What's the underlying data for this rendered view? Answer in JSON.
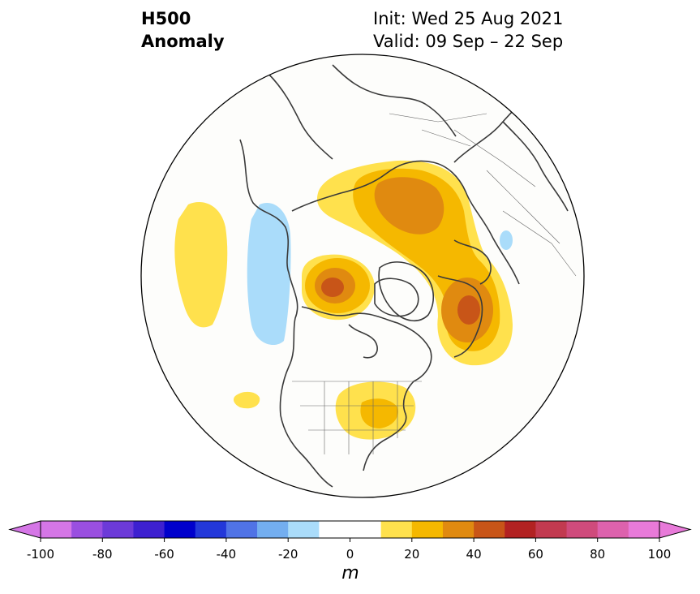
{
  "title": {
    "left_line1": "H500",
    "left_line2": "Anomaly",
    "init": "Init: Wed 25 Aug 2021",
    "valid": "Valid: 09 Sep – 22 Sep"
  },
  "colorbar": {
    "unit": "m",
    "min": -100,
    "max": 100,
    "step": 10,
    "ticks": [
      "-100",
      "-80",
      "-60",
      "-40",
      "-20",
      "0",
      "20",
      "40",
      "60",
      "80",
      "100"
    ],
    "colors": [
      "#d576e6",
      "#9a4fe0",
      "#6c3ad8",
      "#3d20d0",
      "#0000cc",
      "#2338d9",
      "#5073e6",
      "#73aef0",
      "#aadcfa",
      "#ffffff",
      "#ffffff",
      "#ffe14d",
      "#f5b800",
      "#e08a10",
      "#c85518",
      "#b22222",
      "#c23a50",
      "#cf4b7c",
      "#dd62ad",
      "#e87ad9"
    ],
    "extend_low": "#d576e6",
    "extend_high": "#e87ad9"
  },
  "map": {
    "projection": "north-polar-stereographic",
    "anomaly_features": [
      {
        "region": "North Pacific",
        "sign": "positive",
        "max_level": 20
      },
      {
        "region": "Gulf of Alaska / West Coast",
        "sign": "negative",
        "max_level": -20
      },
      {
        "region": "Northern Canada / Baffin",
        "sign": "positive",
        "max_level": 50
      },
      {
        "region": "North Atlantic / Western Europe",
        "sign": "positive",
        "max_level": 50
      },
      {
        "region": "Northern Russia / Siberia",
        "sign": "positive",
        "max_level": 50
      },
      {
        "region": "Great Lakes / Eastern US",
        "sign": "positive",
        "max_level": 20
      }
    ]
  }
}
